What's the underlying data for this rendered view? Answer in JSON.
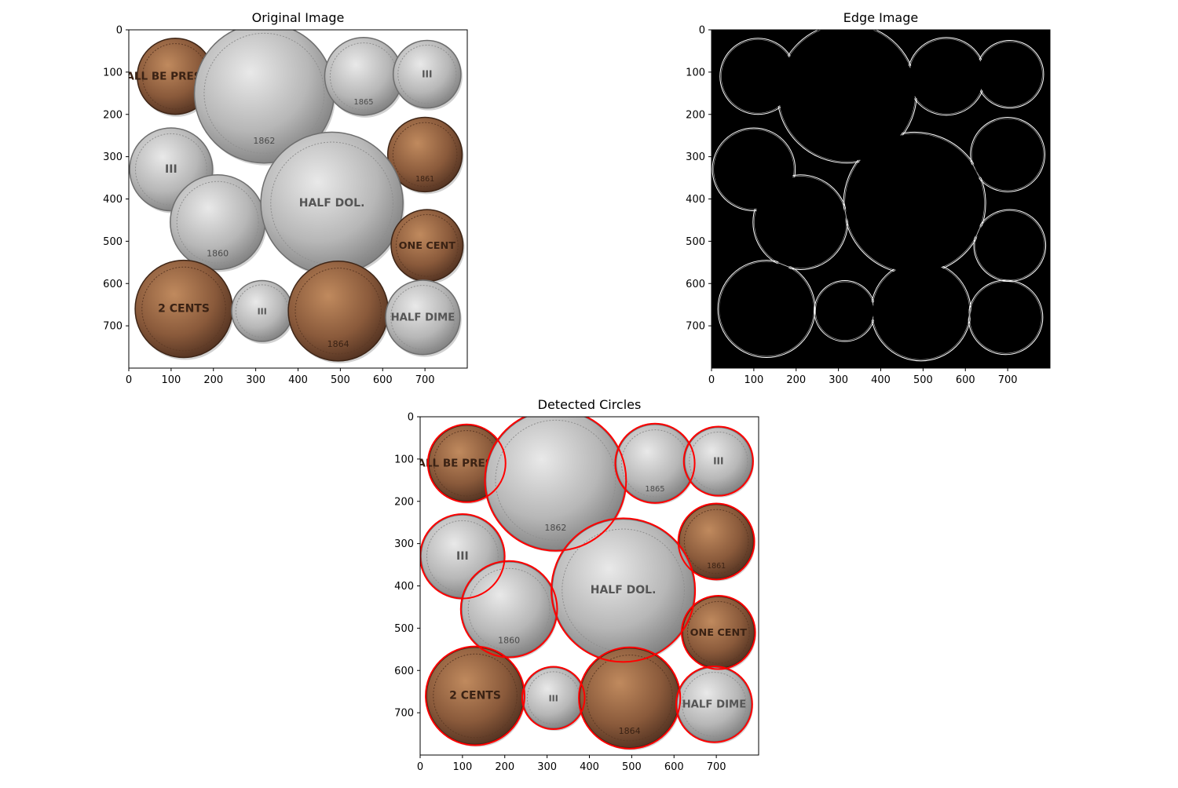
{
  "figure": {
    "panels": [
      {
        "id": "original",
        "title": "Original Image",
        "x_ticks": [
          "0",
          "100",
          "200",
          "300",
          "400",
          "500",
          "600",
          "700"
        ],
        "y_ticks": [
          "0",
          "100",
          "200",
          "300",
          "400",
          "500",
          "600",
          "700"
        ]
      },
      {
        "id": "edge",
        "title": "Edge Image",
        "x_ticks": [
          "0",
          "100",
          "200",
          "300",
          "400",
          "500",
          "600",
          "700"
        ],
        "y_ticks": [
          "0",
          "100",
          "200",
          "300",
          "400",
          "500",
          "600",
          "700"
        ]
      },
      {
        "id": "detected",
        "title": "Detected Circles",
        "x_ticks": [
          "0",
          "100",
          "200",
          "300",
          "400",
          "500",
          "600",
          "700"
        ],
        "y_ticks": [
          "0",
          "100",
          "200",
          "300",
          "400",
          "500",
          "600",
          "700"
        ]
      }
    ]
  },
  "image_data": {
    "extent": [
      0,
      800,
      800,
      0
    ],
    "coins": [
      {
        "cx": 110,
        "cy": 110,
        "r": 90,
        "metal": "bronze",
        "legend": "SHALL BE PRESERVED",
        "year": ""
      },
      {
        "cx": 320,
        "cy": 150,
        "r": 165,
        "metal": "silver",
        "legend": "",
        "year": "1862"
      },
      {
        "cx": 555,
        "cy": 110,
        "r": 92,
        "metal": "silver",
        "legend": "",
        "year": "1865"
      },
      {
        "cx": 705,
        "cy": 105,
        "r": 80,
        "metal": "silver",
        "legend": "III",
        "year": ""
      },
      {
        "cx": 100,
        "cy": 330,
        "r": 98,
        "metal": "silver",
        "legend": "III",
        "year": ""
      },
      {
        "cx": 700,
        "cy": 295,
        "r": 88,
        "metal": "bronze",
        "legend": "",
        "year": "1861"
      },
      {
        "cx": 210,
        "cy": 455,
        "r": 112,
        "metal": "silver",
        "legend": "",
        "year": "1860"
      },
      {
        "cx": 480,
        "cy": 410,
        "r": 168,
        "metal": "silver",
        "legend": "HALF DOL.",
        "year": ""
      },
      {
        "cx": 705,
        "cy": 510,
        "r": 85,
        "metal": "bronze",
        "legend": "ONE CENT",
        "year": ""
      },
      {
        "cx": 130,
        "cy": 660,
        "r": 115,
        "metal": "bronze",
        "legend": "2 CENTS",
        "year": ""
      },
      {
        "cx": 315,
        "cy": 665,
        "r": 72,
        "metal": "silver",
        "legend": "III",
        "year": ""
      },
      {
        "cx": 495,
        "cy": 665,
        "r": 118,
        "metal": "bronze",
        "legend": "",
        "year": "1864"
      },
      {
        "cx": 695,
        "cy": 680,
        "r": 88,
        "metal": "silver",
        "legend": "HALF DIME",
        "year": ""
      }
    ],
    "colors": {
      "silver": "#b5b5b5",
      "bronze": "#8a5a3b",
      "detected_circle": "#ff0000",
      "edge_background": "#000000",
      "edge_line": "#ffffff"
    }
  }
}
